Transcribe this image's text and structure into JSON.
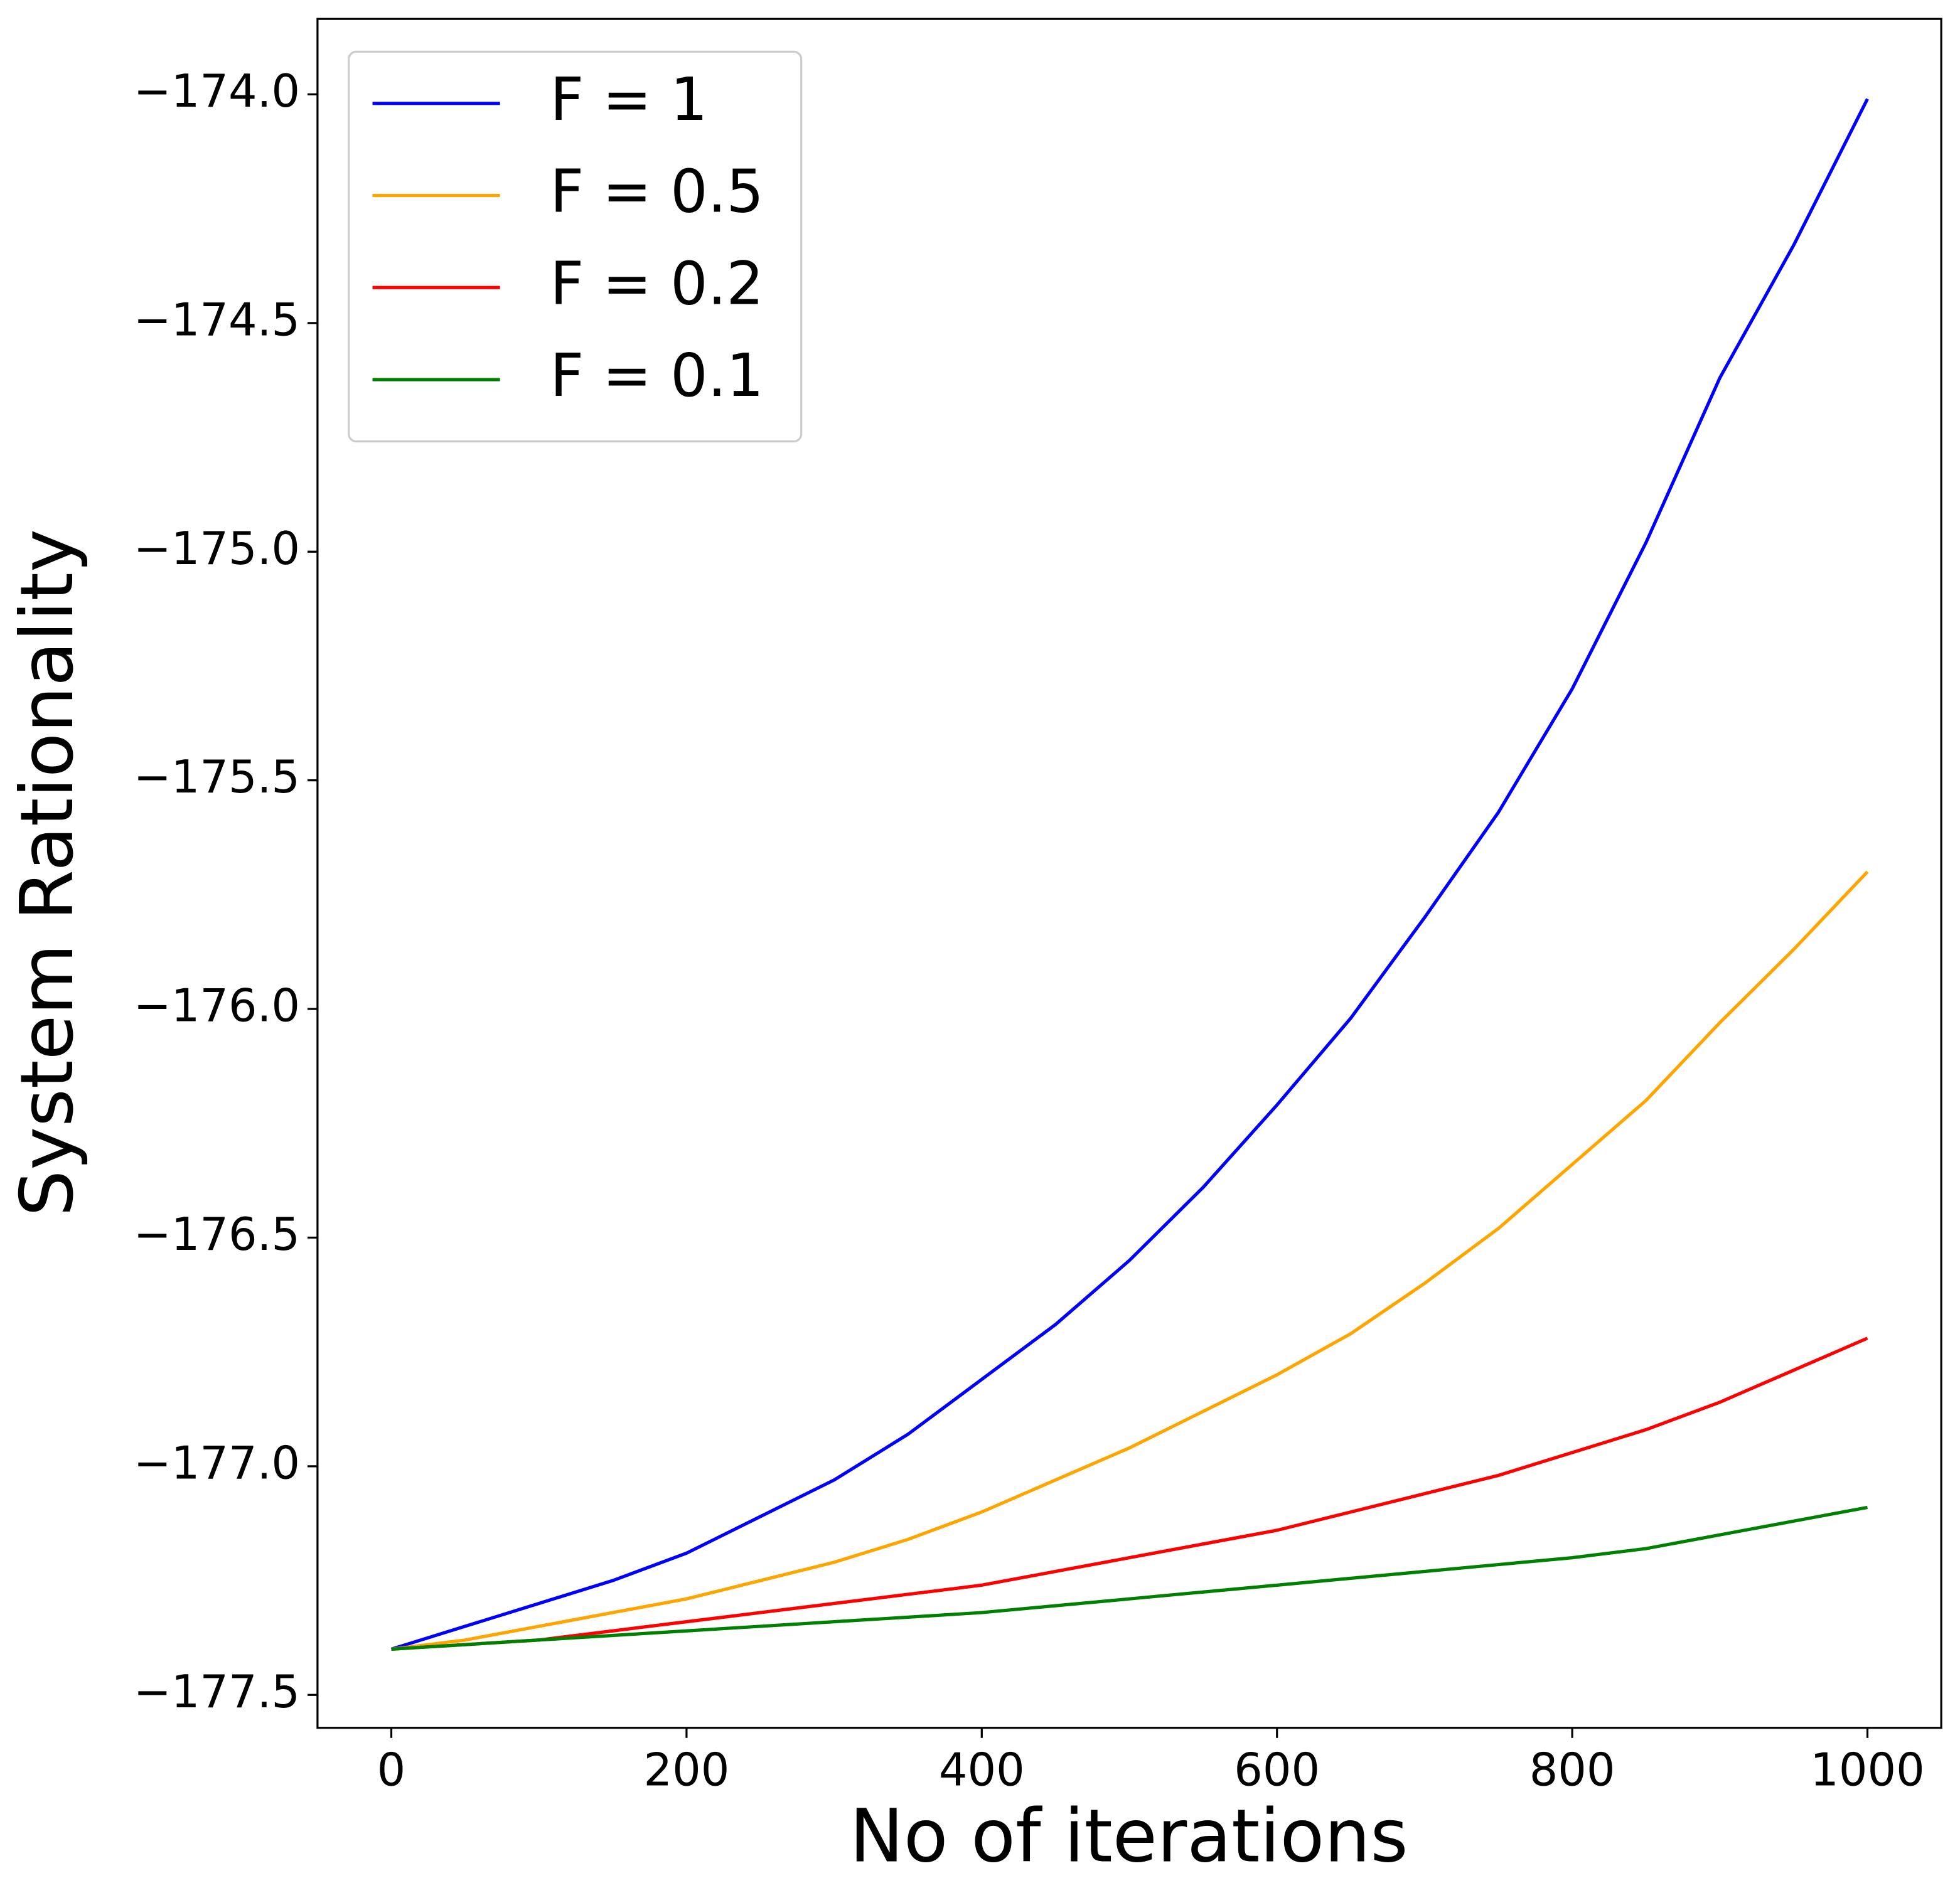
{
  "chart_data": {
    "type": "line",
    "xlabel": "No of iterations",
    "ylabel": "System Rationality",
    "x": [
      0,
      50,
      100,
      150,
      200,
      250,
      300,
      350,
      400,
      450,
      500,
      550,
      600,
      650,
      700,
      750,
      800,
      850,
      900,
      950,
      1000
    ],
    "series": [
      {
        "name": "F = 1",
        "color": "#0000ff",
        "values": [
          -177.4,
          -177.35,
          -177.3,
          -177.25,
          -177.19,
          -177.11,
          -177.03,
          -176.93,
          -176.81,
          -176.69,
          -176.55,
          -176.39,
          -176.21,
          -176.02,
          -175.8,
          -175.57,
          -175.3,
          -174.98,
          -174.62,
          -174.33,
          -174.01
        ]
      },
      {
        "name": "F = 0.5",
        "color": "#ffa500",
        "values": [
          -177.4,
          -177.38,
          -177.35,
          -177.32,
          -177.29,
          -177.25,
          -177.21,
          -177.16,
          -177.1,
          -177.03,
          -176.96,
          -176.88,
          -176.8,
          -176.71,
          -176.6,
          -176.48,
          -176.34,
          -176.2,
          -176.03,
          -175.87,
          -175.7
        ]
      },
      {
        "name": "F = 0.2",
        "color": "#ff0000",
        "values": [
          -177.4,
          -177.39,
          -177.38,
          -177.36,
          -177.34,
          -177.32,
          -177.3,
          -177.28,
          -177.26,
          -177.23,
          -177.2,
          -177.17,
          -177.14,
          -177.1,
          -177.06,
          -177.02,
          -176.97,
          -176.92,
          -176.86,
          -176.79,
          -176.72
        ]
      },
      {
        "name": "F = 0.1",
        "color": "#008000",
        "values": [
          -177.4,
          -177.39,
          -177.38,
          -177.37,
          -177.36,
          -177.35,
          -177.34,
          -177.33,
          -177.32,
          -177.305,
          -177.29,
          -177.275,
          -177.26,
          -177.245,
          -177.23,
          -177.215,
          -177.2,
          -177.18,
          -177.15,
          -177.12,
          -177.09
        ]
      }
    ],
    "xlim": [
      -50,
      1050
    ],
    "xticks": [
      0,
      200,
      400,
      600,
      800,
      1000
    ],
    "ylim": [
      -177.572,
      -173.835
    ],
    "yticks": [
      {
        "value": -177.5,
        "label": "−177.5"
      },
      {
        "value": -177.0,
        "label": "−177.0"
      },
      {
        "value": -176.5,
        "label": "−176.5"
      },
      {
        "value": -176.0,
        "label": "−176.0"
      },
      {
        "value": -175.5,
        "label": "−175.5"
      },
      {
        "value": -175.0,
        "label": "−175.0"
      },
      {
        "value": -174.5,
        "label": "−174.5"
      },
      {
        "value": -174.0,
        "label": "−174.0"
      }
    ],
    "legend": "upper left",
    "grid": false
  }
}
